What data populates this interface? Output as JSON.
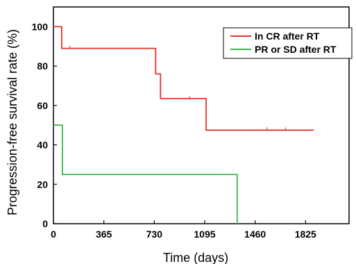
{
  "chart_data": {
    "type": "line",
    "xlabel": "Time (days)",
    "ylabel": "Progression-free survival rate (%)",
    "xlim": [
      0,
      2140
    ],
    "ylim": [
      0,
      110
    ],
    "xticks": [
      0,
      365,
      730,
      1095,
      1460,
      1825
    ],
    "yticks": [
      0,
      20,
      40,
      60,
      80,
      100
    ],
    "step": true,
    "legend_position": "top-right",
    "series": [
      {
        "name": "In CR after RT",
        "color": "#e8302a",
        "points": [
          [
            0,
            100
          ],
          [
            60,
            100
          ],
          [
            60,
            89
          ],
          [
            740,
            89
          ],
          [
            740,
            76
          ],
          [
            775,
            76
          ],
          [
            775,
            63.5
          ],
          [
            1105,
            63.5
          ],
          [
            1105,
            47.5
          ],
          [
            1885,
            47.5
          ]
        ],
        "censor_marks": [
          [
            120,
            89
          ],
          [
            985,
            63.5
          ],
          [
            1545,
            47.5
          ],
          [
            1680,
            47.5
          ]
        ]
      },
      {
        "name": "PR or SD after RT",
        "color": "#3fb24a",
        "points": [
          [
            0,
            50
          ],
          [
            65,
            50
          ],
          [
            65,
            25
          ],
          [
            1330,
            25
          ],
          [
            1330,
            0
          ]
        ],
        "censor_marks": []
      }
    ]
  }
}
